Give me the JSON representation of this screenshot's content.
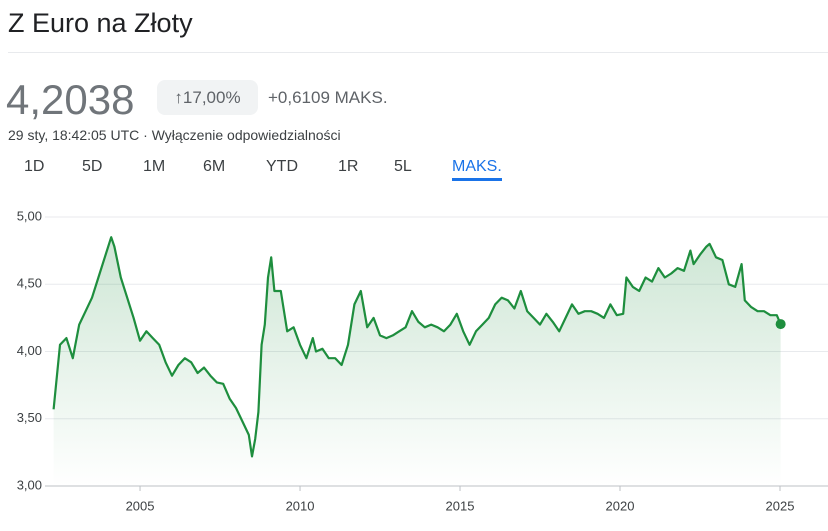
{
  "header": {
    "title": "Z Euro na Złoty",
    "price": "4,2038",
    "change_percent": "↑17,00%",
    "change_abs": "+0,6109 MAKS.",
    "timestamp": "29 sty, 18:42:05 UTC · Wyłączenie odpowiedzialności"
  },
  "tabs": [
    "1D",
    "5D",
    "1M",
    "6M",
    "YTD",
    "1R",
    "5L",
    "MAKS."
  ],
  "chart_data": {
    "type": "line",
    "grid": true,
    "x": [
      2002.3,
      2002.5,
      2002.7,
      2002.9,
      2003.1,
      2003.3,
      2003.5,
      2003.7,
      2003.9,
      2004.1,
      2004.2,
      2004.4,
      2004.6,
      2004.8,
      2005.0,
      2005.2,
      2005.4,
      2005.6,
      2005.8,
      2006.0,
      2006.2,
      2006.4,
      2006.6,
      2006.8,
      2007.0,
      2007.2,
      2007.4,
      2007.6,
      2007.8,
      2008.0,
      2008.2,
      2008.4,
      2008.5,
      2008.6,
      2008.7,
      2008.8,
      2008.9,
      2009.0,
      2009.1,
      2009.2,
      2009.4,
      2009.6,
      2009.8,
      2010.0,
      2010.2,
      2010.4,
      2010.5,
      2010.7,
      2010.9,
      2011.1,
      2011.3,
      2011.5,
      2011.7,
      2011.9,
      2012.1,
      2012.3,
      2012.5,
      2012.7,
      2012.9,
      2013.1,
      2013.3,
      2013.5,
      2013.7,
      2013.9,
      2014.1,
      2014.3,
      2014.5,
      2014.7,
      2014.9,
      2015.1,
      2015.3,
      2015.5,
      2015.7,
      2015.9,
      2016.1,
      2016.3,
      2016.5,
      2016.7,
      2016.9,
      2017.1,
      2017.3,
      2017.5,
      2017.7,
      2017.9,
      2018.1,
      2018.3,
      2018.5,
      2018.7,
      2018.9,
      2019.1,
      2019.3,
      2019.5,
      2019.7,
      2019.9,
      2020.1,
      2020.2,
      2020.4,
      2020.6,
      2020.8,
      2021.0,
      2021.2,
      2021.4,
      2021.6,
      2021.8,
      2022.0,
      2022.2,
      2022.3,
      2022.5,
      2022.7,
      2022.8,
      2023.0,
      2023.2,
      2023.4,
      2023.6,
      2023.8,
      2023.9,
      2024.1,
      2024.3,
      2024.5,
      2024.7,
      2024.9,
      2025.02
    ],
    "series": [
      {
        "color": "#1e8e3e",
        "values": [
          3.57,
          4.05,
          4.1,
          3.95,
          4.2,
          4.3,
          4.4,
          4.55,
          4.7,
          4.85,
          4.78,
          4.55,
          4.4,
          4.25,
          4.08,
          4.15,
          4.1,
          4.05,
          3.92,
          3.82,
          3.9,
          3.95,
          3.92,
          3.84,
          3.88,
          3.82,
          3.77,
          3.76,
          3.65,
          3.58,
          3.48,
          3.38,
          3.22,
          3.35,
          3.55,
          4.05,
          4.2,
          4.55,
          4.7,
          4.45,
          4.45,
          4.15,
          4.18,
          4.05,
          3.95,
          4.1,
          4.0,
          4.02,
          3.95,
          3.95,
          3.9,
          4.05,
          4.35,
          4.45,
          4.18,
          4.25,
          4.12,
          4.1,
          4.12,
          4.15,
          4.18,
          4.3,
          4.22,
          4.18,
          4.2,
          4.18,
          4.15,
          4.2,
          4.28,
          4.15,
          4.05,
          4.15,
          4.2,
          4.25,
          4.35,
          4.4,
          4.38,
          4.32,
          4.45,
          4.3,
          4.25,
          4.2,
          4.28,
          4.22,
          4.15,
          4.25,
          4.35,
          4.28,
          4.3,
          4.3,
          4.28,
          4.25,
          4.35,
          4.27,
          4.28,
          4.55,
          4.48,
          4.45,
          4.55,
          4.52,
          4.62,
          4.55,
          4.58,
          4.62,
          4.6,
          4.75,
          4.65,
          4.72,
          4.78,
          4.8,
          4.7,
          4.68,
          4.5,
          4.48,
          4.65,
          4.38,
          4.33,
          4.3,
          4.3,
          4.27,
          4.27,
          4.2038
        ]
      }
    ],
    "xlim": [
      2002.03,
      2026.5
    ],
    "xticks": [
      2005,
      2010,
      2015,
      2020,
      2025
    ],
    "ylim": [
      3,
      5
    ],
    "yticks": [
      {
        "value": 3,
        "label": "3,00"
      },
      {
        "value": 3.5,
        "label": "3,50"
      },
      {
        "value": 4,
        "label": "4,00"
      },
      {
        "value": 4.5,
        "label": "4,50"
      },
      {
        "value": 5,
        "label": "5,00"
      }
    ]
  }
}
